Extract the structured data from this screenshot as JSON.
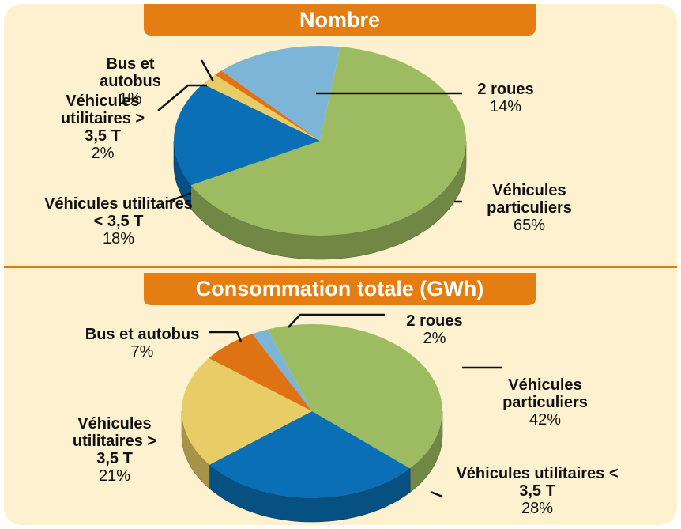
{
  "chart_data": [
    {
      "type": "pie",
      "title": "Nombre",
      "categories": [
        "Véhicules particuliers",
        "Véhicules utilitaires < 3,5 T",
        "Véhicules utilitaires > 3,5 T",
        "Bus et autobus",
        "2 roues"
      ],
      "values": [
        65,
        18,
        2,
        1,
        14
      ],
      "value_labels": [
        "65%",
        "18%",
        "2%",
        "1%",
        "14%"
      ],
      "colors": [
        "#9dbb61",
        "#0a6fb5",
        "#e8cc66",
        "#df7212",
        "#7db5d9"
      ]
    },
    {
      "type": "pie",
      "title": "Consommation totale (GWh)",
      "categories": [
        "Véhicules particuliers",
        "Véhicules utilitaires < 3,5 T",
        "Véhicules utilitaires > 3,5 T",
        "Bus et autobus",
        "2 roues"
      ],
      "values": [
        42,
        28,
        21,
        7,
        2
      ],
      "value_labels": [
        "42%",
        "28%",
        "21%",
        "7%",
        "2%"
      ],
      "colors": [
        "#9dbb61",
        "#0a6fb5",
        "#e8cc66",
        "#df7212",
        "#7db5d9"
      ]
    }
  ]
}
